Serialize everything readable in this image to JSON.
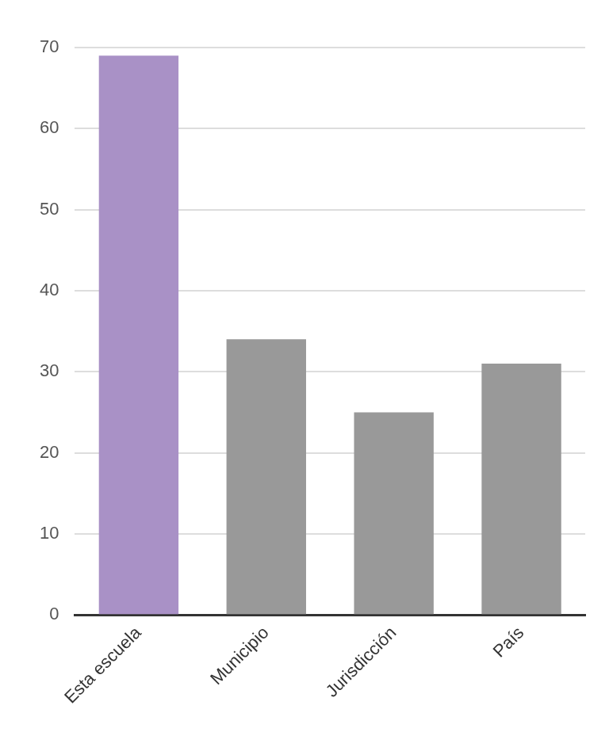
{
  "chart_data": {
    "type": "bar",
    "categories": [
      "Esta escuela",
      "Municipio",
      "Jurisdicción",
      "País"
    ],
    "values": [
      69,
      34,
      25,
      31
    ],
    "colors": [
      "#a991c6",
      "#999999",
      "#999999",
      "#999999"
    ],
    "ylim": [
      0,
      70
    ],
    "yticks": [
      0,
      10,
      20,
      30,
      40,
      50,
      60,
      70
    ],
    "grid": true
  }
}
